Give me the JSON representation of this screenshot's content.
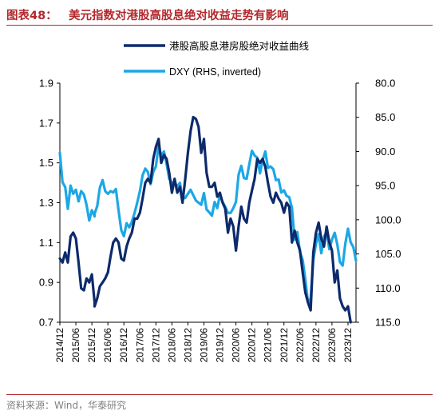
{
  "header": {
    "figure_label": "图表48：",
    "title": "美元指数对港股高股息绝对收益走势有影响"
  },
  "footer": {
    "source": "资料来源：Wind，华泰研究"
  },
  "colors": {
    "hk_series": "#0d2a6b",
    "dxy_series": "#1ca7e6",
    "title": "#b3282d",
    "axis": "#000000"
  },
  "chart_data": {
    "type": "line",
    "title": "美元指数对港股高股息绝对收益走势有影响",
    "grid": false,
    "legend_position": "top-center",
    "left_axis": {
      "ylim": [
        0.7,
        1.9
      ],
      "ticks": [
        "1.9",
        "1.7",
        "1.5",
        "1.3",
        "1.1",
        "0.9",
        "0.7"
      ]
    },
    "right_axis": {
      "ylim_inverted": [
        80.0,
        115.0
      ],
      "inverted": true,
      "ticks": [
        "80.0",
        "85.0",
        "90.0",
        "95.0",
        "100.0",
        "105.0",
        "110.0",
        "115.0"
      ]
    },
    "x_tick_labels": [
      "2014/12",
      "2015/06",
      "2015/12",
      "2016/06",
      "2016/12",
      "2017/06",
      "2017/12",
      "2018/06",
      "2018/12",
      "2019/06",
      "2019/12",
      "2020/06",
      "2020/12",
      "2021/06",
      "2021/12",
      "2022/06",
      "2022/12",
      "2023/06",
      "2023/12"
    ],
    "series": [
      {
        "name": "港股高股息港房股绝对收益曲线",
        "axis": "left",
        "color": "#0d2a6b",
        "points": [
          [
            "2014/12",
            1.02
          ],
          [
            "2015/01",
            1.0
          ],
          [
            "2015/02",
            1.05
          ],
          [
            "2015/03",
            1.0
          ],
          [
            "2015/04",
            1.13
          ],
          [
            "2015/05",
            1.15
          ],
          [
            "2015/06",
            1.12
          ],
          [
            "2015/07",
            1.0
          ],
          [
            "2015/08",
            0.87
          ],
          [
            "2015/09",
            0.86
          ],
          [
            "2015/10",
            0.92
          ],
          [
            "2015/11",
            0.9
          ],
          [
            "2015/12",
            0.94
          ],
          [
            "2015/13",
            0.8
          ],
          [
            "2016/01",
            0.78
          ],
          [
            "2016/02",
            0.82
          ],
          [
            "2016/03",
            0.88
          ],
          [
            "2016/04",
            0.9
          ],
          [
            "2016/05",
            0.92
          ],
          [
            "2016/06",
            0.95
          ],
          [
            "2016/07",
            1.03
          ],
          [
            "2016/08",
            1.1
          ],
          [
            "2016/09",
            1.12
          ],
          [
            "2016/10",
            1.1
          ],
          [
            "2016/11",
            1.02
          ],
          [
            "2016/12",
            1.01
          ],
          [
            "2017/01",
            1.08
          ],
          [
            "2017/02",
            1.12
          ],
          [
            "2017/03",
            1.15
          ],
          [
            "2017/04",
            1.22
          ],
          [
            "2017/05",
            1.22
          ],
          [
            "2017/06",
            1.25
          ],
          [
            "2017/07",
            1.32
          ],
          [
            "2017/08",
            1.4
          ],
          [
            "2017/09",
            1.42
          ],
          [
            "2017/10",
            1.4
          ],
          [
            "2017/11",
            1.52
          ],
          [
            "2017/12",
            1.58
          ],
          [
            "2018/01",
            1.62
          ],
          [
            "2018/02",
            1.5
          ],
          [
            "2018/03",
            1.54
          ],
          [
            "2018/04",
            1.52
          ],
          [
            "2018/05",
            1.45
          ],
          [
            "2018/06",
            1.35
          ],
          [
            "2018/07",
            1.42
          ],
          [
            "2018/08",
            1.35
          ],
          [
            "2018/09",
            1.38
          ],
          [
            "2018/10",
            1.3
          ],
          [
            "2018/11",
            1.42
          ],
          [
            "2018/12",
            1.55
          ],
          [
            "2019/01",
            1.66
          ],
          [
            "2019/02",
            1.73
          ],
          [
            "2019/03",
            1.72
          ],
          [
            "2019/04",
            1.68
          ],
          [
            "2019/05",
            1.55
          ],
          [
            "2019/06",
            1.62
          ],
          [
            "2019/07",
            1.45
          ],
          [
            "2019/08",
            1.38
          ],
          [
            "2019/09",
            1.38
          ],
          [
            "2019/10",
            1.4
          ],
          [
            "2019/11",
            1.33
          ],
          [
            "2019/12",
            1.35
          ],
          [
            "2020/01",
            1.3
          ],
          [
            "2020/02",
            1.27
          ],
          [
            "2020/03",
            1.15
          ],
          [
            "2020/04",
            1.22
          ],
          [
            "2020/05",
            1.18
          ],
          [
            "2020/06",
            1.06
          ],
          [
            "2020/07",
            1.18
          ],
          [
            "2020/08",
            1.28
          ],
          [
            "2020/09",
            1.22
          ],
          [
            "2020/10",
            1.2
          ],
          [
            "2020/11",
            1.3
          ],
          [
            "2020/12",
            1.36
          ],
          [
            "2021/01",
            1.42
          ],
          [
            "2021/02",
            1.52
          ],
          [
            "2021/03",
            1.5
          ],
          [
            "2021/04",
            1.52
          ],
          [
            "2021/05",
            1.48
          ],
          [
            "2021/06",
            1.4
          ],
          [
            "2021/07",
            1.33
          ],
          [
            "2021/08",
            1.3
          ],
          [
            "2021/09",
            1.35
          ],
          [
            "2021/10",
            1.32
          ],
          [
            "2021/11",
            1.3
          ],
          [
            "2021/12",
            1.25
          ],
          [
            "2022/01",
            1.3
          ],
          [
            "2022/02",
            1.28
          ],
          [
            "2022/03",
            1.1
          ],
          [
            "2022/04",
            1.16
          ],
          [
            "2022/05",
            1.1
          ],
          [
            "2022/06",
            1.06
          ],
          [
            "2022/07",
            0.95
          ],
          [
            "2022/08",
            0.85
          ],
          [
            "2022/09",
            0.8
          ],
          [
            "2022/10",
            0.76
          ],
          [
            "2022/11",
            1.05
          ],
          [
            "2022/12",
            1.15
          ],
          [
            "2023/01",
            1.2
          ],
          [
            "2023/02",
            1.12
          ],
          [
            "2023/03",
            1.08
          ],
          [
            "2023/04",
            1.18
          ],
          [
            "2023/05",
            1.1
          ],
          [
            "2023/06",
            1.06
          ],
          [
            "2023/07",
            0.9
          ],
          [
            "2023/08",
            0.96
          ],
          [
            "2023/09",
            0.82
          ],
          [
            "2023/10",
            0.78
          ],
          [
            "2023/11",
            0.76
          ],
          [
            "2023/12",
            0.78
          ],
          [
            "2024/01",
            0.7
          ]
        ]
      },
      {
        "name": "DXY (RHS, inverted)",
        "axis": "right",
        "color": "#1ca7e6",
        "points": [
          [
            "2014/12",
            90.2
          ],
          [
            "2015/01",
            94.5
          ],
          [
            "2015/02",
            95.2
          ],
          [
            "2015/03",
            98.4
          ],
          [
            "2015/04",
            95.0
          ],
          [
            "2015/05",
            96.2
          ],
          [
            "2015/06",
            95.6
          ],
          [
            "2015/07",
            97.3
          ],
          [
            "2015/08",
            95.8
          ],
          [
            "2015/09",
            96.3
          ],
          [
            "2015/10",
            97.8
          ],
          [
            "2015/11",
            100.1
          ],
          [
            "2015/12",
            98.6
          ],
          [
            "2015/13",
            99.5
          ],
          [
            "2016/01",
            99.1
          ],
          [
            "2016/02",
            98.0
          ],
          [
            "2016/03",
            95.3
          ],
          [
            "2016/04",
            94.2
          ],
          [
            "2016/05",
            95.8
          ],
          [
            "2016/06",
            96.2
          ],
          [
            "2016/07",
            95.8
          ],
          [
            "2016/08",
            96.0
          ],
          [
            "2016/09",
            95.5
          ],
          [
            "2016/10",
            98.6
          ],
          [
            "2016/11",
            101.5
          ],
          [
            "2016/12",
            102.4
          ],
          [
            "2017/01",
            100.5
          ],
          [
            "2017/02",
            101.1
          ],
          [
            "2017/03",
            100.3
          ],
          [
            "2017/04",
            99.0
          ],
          [
            "2017/05",
            97.5
          ],
          [
            "2017/06",
            95.8
          ],
          [
            "2017/07",
            93.5
          ],
          [
            "2017/08",
            92.5
          ],
          [
            "2017/09",
            93.0
          ],
          [
            "2017/10",
            94.8
          ],
          [
            "2017/11",
            93.0
          ],
          [
            "2017/12",
            92.2
          ],
          [
            "2018/01",
            89.1
          ],
          [
            "2018/02",
            90.6
          ],
          [
            "2018/03",
            90.0
          ],
          [
            "2018/04",
            91.8
          ],
          [
            "2018/05",
            94.0
          ],
          [
            "2018/06",
            94.6
          ],
          [
            "2018/07",
            94.5
          ],
          [
            "2018/08",
            95.1
          ],
          [
            "2018/09",
            94.6
          ],
          [
            "2018/10",
            96.9
          ],
          [
            "2018/11",
            96.8
          ],
          [
            "2018/12",
            96.2
          ],
          [
            "2019/01",
            95.6
          ],
          [
            "2019/02",
            96.4
          ],
          [
            "2019/03",
            97.2
          ],
          [
            "2019/04",
            97.5
          ],
          [
            "2019/05",
            97.8
          ],
          [
            "2019/06",
            96.1
          ],
          [
            "2019/07",
            98.5
          ],
          [
            "2019/08",
            98.9
          ],
          [
            "2019/09",
            99.4
          ],
          [
            "2019/10",
            97.4
          ],
          [
            "2019/11",
            98.3
          ],
          [
            "2019/12",
            96.4
          ],
          [
            "2020/01",
            97.4
          ],
          [
            "2020/02",
            98.1
          ],
          [
            "2020/03",
            99.0
          ],
          [
            "2020/04",
            99.0
          ],
          [
            "2020/05",
            98.3
          ],
          [
            "2020/06",
            97.4
          ],
          [
            "2020/07",
            93.4
          ],
          [
            "2020/08",
            92.1
          ],
          [
            "2020/09",
            93.9
          ],
          [
            "2020/10",
            94.0
          ],
          [
            "2020/11",
            91.9
          ],
          [
            "2020/12",
            89.9
          ],
          [
            "2021/01",
            90.6
          ],
          [
            "2021/02",
            90.9
          ],
          [
            "2021/03",
            93.2
          ],
          [
            "2021/04",
            91.3
          ],
          [
            "2021/05",
            90.0
          ],
          [
            "2021/06",
            92.4
          ],
          [
            "2021/07",
            92.2
          ],
          [
            "2021/08",
            92.6
          ],
          [
            "2021/09",
            94.2
          ],
          [
            "2021/10",
            94.1
          ],
          [
            "2021/11",
            96.0
          ],
          [
            "2021/12",
            95.7
          ],
          [
            "2022/01",
            96.5
          ],
          [
            "2022/02",
            96.7
          ],
          [
            "2022/03",
            98.3
          ],
          [
            "2022/04",
            102.9
          ],
          [
            "2022/05",
            101.8
          ],
          [
            "2022/06",
            104.7
          ],
          [
            "2022/07",
            105.9
          ],
          [
            "2022/08",
            108.7
          ],
          [
            "2022/09",
            112.1
          ],
          [
            "2022/10",
            111.5
          ],
          [
            "2022/11",
            105.9
          ],
          [
            "2022/12",
            103.5
          ],
          [
            "2023/01",
            102.1
          ],
          [
            "2023/02",
            104.9
          ],
          [
            "2023/03",
            102.5
          ],
          [
            "2023/04",
            101.7
          ],
          [
            "2023/05",
            104.3
          ],
          [
            "2023/06",
            102.9
          ],
          [
            "2023/07",
            101.9
          ],
          [
            "2023/08",
            103.6
          ],
          [
            "2023/09",
            106.2
          ],
          [
            "2023/10",
            106.7
          ],
          [
            "2023/11",
            103.5
          ],
          [
            "2023/12",
            101.3
          ],
          [
            "2024/01",
            103.3
          ],
          [
            "2024/02",
            104.0
          ],
          [
            "2024/03",
            106.0
          ]
        ]
      }
    ]
  }
}
